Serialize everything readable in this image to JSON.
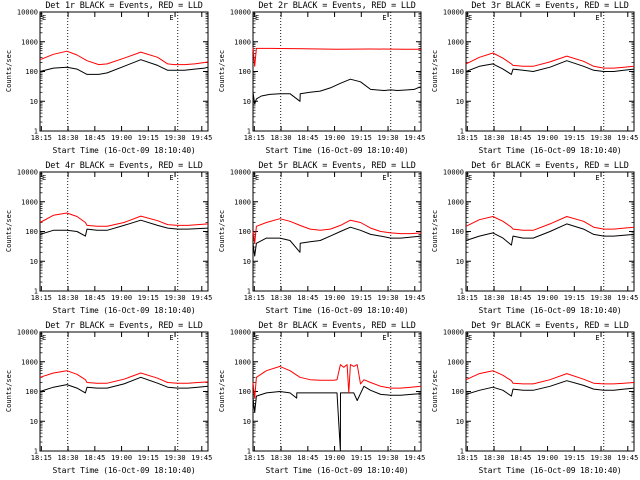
{
  "figure": {
    "start_time_label": "Start Time (16-Oct-09 18:10:40)",
    "y_axis_label": "Counts/sec"
  },
  "colors": {
    "events": "#000000",
    "lld": "#ff0000",
    "axis": "#000000"
  },
  "chart_data": [
    {
      "type": "line",
      "detector": "1r",
      "title": "Det 1r BLACK = Events, RED = LLD",
      "xlabel": "Start Time (16-Oct-09 18:10:40)",
      "ylabel": "Counts/sec",
      "yscale": "log",
      "x_ticks": [
        "18:15",
        "18:30",
        "18:45",
        "19:00",
        "19:15",
        "19:30",
        "19:45"
      ],
      "y_ticks": [
        "1",
        "10",
        "100",
        "1000",
        "10000"
      ],
      "xlim": [
        0,
        100
      ],
      "ylim": [
        1,
        10000
      ],
      "dotted_vlines": [
        16.5,
        82.0
      ],
      "corner_mark": "E",
      "series": [
        {
          "name": "Events",
          "color": "#000000",
          "x": [
            0,
            8,
            16,
            22,
            28,
            35,
            40,
            50,
            60,
            70,
            76,
            80,
            86,
            92,
            98,
            100
          ],
          "y": [
            100,
            130,
            140,
            120,
            80,
            80,
            90,
            150,
            250,
            160,
            110,
            110,
            110,
            120,
            130,
            140
          ]
        },
        {
          "name": "LLD",
          "color": "#ff0000",
          "x": [
            0,
            8,
            16,
            22,
            28,
            35,
            40,
            50,
            60,
            70,
            76,
            80,
            86,
            92,
            98,
            100
          ],
          "y": [
            250,
            380,
            480,
            360,
            230,
            170,
            180,
            280,
            450,
            300,
            180,
            170,
            170,
            180,
            200,
            210
          ]
        }
      ]
    },
    {
      "type": "line",
      "detector": "2r",
      "title": "Det 2r BLACK = Events, RED = LLD",
      "xlabel": "Start Time (16-Oct-09 18:10:40)",
      "ylabel": "Counts/sec",
      "yscale": "log",
      "x_ticks": [
        "18:15",
        "18:30",
        "18:45",
        "19:00",
        "19:15",
        "19:30",
        "19:45"
      ],
      "y_ticks": [
        "1",
        "10",
        "100",
        "1000",
        "10000"
      ],
      "xlim": [
        0,
        100
      ],
      "ylim": [
        1,
        10000
      ],
      "dotted_vlines": [
        16.5,
        82.0
      ],
      "corner_mark": "E",
      "series": [
        {
          "name": "Events",
          "color": "#000000",
          "x": [
            0,
            1,
            2,
            5,
            10,
            16,
            22,
            28,
            28.1,
            34,
            40,
            46,
            52,
            58,
            64,
            70,
            78,
            82,
            86,
            92,
            96,
            98,
            100
          ],
          "y": [
            20,
            8,
            12,
            15,
            17,
            18,
            18,
            10,
            18,
            20,
            22,
            28,
            40,
            55,
            45,
            25,
            23,
            24,
            23,
            24,
            25,
            28,
            30
          ]
        },
        {
          "name": "LLD",
          "color": "#ff0000",
          "x": [
            0,
            1,
            2,
            10,
            30,
            50,
            70,
            90,
            100
          ],
          "y": [
            650,
            150,
            600,
            600,
            580,
            560,
            570,
            560,
            560
          ]
        }
      ]
    },
    {
      "type": "line",
      "detector": "3r",
      "title": "Det 3r BLACK = Events, RED = LLD",
      "xlabel": "Start Time (16-Oct-09 18:10:40)",
      "ylabel": "Counts/sec",
      "yscale": "log",
      "x_ticks": [
        "18:15",
        "18:30",
        "18:45",
        "19:00",
        "19:15",
        "19:30",
        "19:45"
      ],
      "y_ticks": [
        "1",
        "10",
        "100",
        "1000",
        "10000"
      ],
      "xlim": [
        0,
        100
      ],
      "ylim": [
        1,
        10000
      ],
      "dotted_vlines": [
        16.5,
        82.0
      ],
      "corner_mark": "E",
      "series": [
        {
          "name": "Events",
          "color": "#000000",
          "x": [
            0,
            8,
            16,
            22,
            27,
            28,
            34,
            40,
            50,
            60,
            70,
            76,
            82,
            88,
            94,
            100
          ],
          "y": [
            100,
            150,
            180,
            120,
            80,
            120,
            110,
            100,
            140,
            230,
            150,
            110,
            100,
            100,
            110,
            120
          ]
        },
        {
          "name": "LLD",
          "color": "#ff0000",
          "x": [
            0,
            8,
            16,
            22,
            27,
            28,
            34,
            40,
            50,
            60,
            70,
            76,
            82,
            88,
            94,
            100
          ],
          "y": [
            180,
            300,
            420,
            280,
            180,
            160,
            150,
            150,
            210,
            330,
            220,
            150,
            130,
            130,
            140,
            150
          ]
        }
      ]
    },
    {
      "type": "line",
      "detector": "4r",
      "title": "Det 4r BLACK = Events, RED = LLD",
      "xlabel": "Start Time (16-Oct-09 18:10:40)",
      "ylabel": "Counts/sec",
      "yscale": "log",
      "x_ticks": [
        "18:15",
        "18:30",
        "18:45",
        "19:00",
        "19:15",
        "19:30",
        "19:45"
      ],
      "y_ticks": [
        "1",
        "10",
        "100",
        "1000",
        "10000"
      ],
      "xlim": [
        0,
        100
      ],
      "ylim": [
        1,
        10000
      ],
      "dotted_vlines": [
        16.5,
        82.0
      ],
      "corner_mark": "E",
      "series": [
        {
          "name": "Events",
          "color": "#000000",
          "x": [
            0,
            8,
            16,
            22,
            27,
            28,
            34,
            40,
            50,
            60,
            70,
            76,
            82,
            88,
            94,
            100
          ],
          "y": [
            80,
            110,
            110,
            100,
            70,
            120,
            110,
            110,
            160,
            240,
            160,
            130,
            120,
            120,
            125,
            130
          ]
        },
        {
          "name": "LLD",
          "color": "#ff0000",
          "x": [
            0,
            8,
            16,
            22,
            27,
            28,
            34,
            40,
            50,
            60,
            70,
            76,
            82,
            88,
            94,
            100
          ],
          "y": [
            200,
            350,
            420,
            320,
            200,
            160,
            150,
            150,
            200,
            330,
            230,
            170,
            160,
            160,
            170,
            180
          ]
        }
      ]
    },
    {
      "type": "line",
      "detector": "5r",
      "title": "Det 5r BLACK = Events, RED = LLD",
      "xlabel": "Start Time (16-Oct-09 18:10:40)",
      "ylabel": "Counts/sec",
      "yscale": "log",
      "x_ticks": [
        "18:15",
        "18:30",
        "18:45",
        "19:00",
        "19:15",
        "19:30",
        "19:45"
      ],
      "y_ticks": [
        "1",
        "10",
        "100",
        "1000",
        "10000"
      ],
      "xlim": [
        0,
        100
      ],
      "ylim": [
        1,
        10000
      ],
      "dotted_vlines": [
        16.5,
        82.0
      ],
      "corner_mark": "E",
      "series": [
        {
          "name": "Events",
          "color": "#000000",
          "x": [
            0,
            1,
            2,
            8,
            16,
            22,
            28,
            28.1,
            34,
            40,
            46,
            52,
            58,
            64,
            70,
            76,
            82,
            88,
            94,
            100
          ],
          "y": [
            40,
            15,
            40,
            60,
            60,
            50,
            20,
            40,
            45,
            50,
            70,
            100,
            140,
            110,
            80,
            70,
            60,
            60,
            65,
            70
          ]
        },
        {
          "name": "LLD",
          "color": "#ff0000",
          "x": [
            0,
            1,
            2,
            8,
            16,
            22,
            28,
            34,
            40,
            46,
            52,
            58,
            64,
            70,
            76,
            82,
            88,
            94,
            100
          ],
          "y": [
            100,
            40,
            150,
            200,
            270,
            220,
            160,
            120,
            110,
            120,
            160,
            240,
            200,
            130,
            100,
            90,
            85,
            85,
            90
          ]
        }
      ]
    },
    {
      "type": "line",
      "detector": "6r",
      "title": "Det 6r BLACK = Events, RED = LLD",
      "xlabel": "Start Time (16-Oct-09 18:10:40)",
      "ylabel": "Counts/sec",
      "yscale": "log",
      "x_ticks": [
        "18:15",
        "18:30",
        "18:45",
        "19:00",
        "19:15",
        "19:30",
        "19:45"
      ],
      "y_ticks": [
        "1",
        "10",
        "100",
        "1000",
        "10000"
      ],
      "xlim": [
        0,
        100
      ],
      "ylim": [
        1,
        10000
      ],
      "dotted_vlines": [
        16.5,
        82.0
      ],
      "corner_mark": "E",
      "series": [
        {
          "name": "Events",
          "color": "#000000",
          "x": [
            0,
            8,
            16,
            22,
            27,
            28,
            34,
            40,
            50,
            60,
            70,
            76,
            82,
            88,
            94,
            100
          ],
          "y": [
            50,
            70,
            90,
            60,
            35,
            70,
            60,
            60,
            100,
            180,
            120,
            80,
            70,
            70,
            75,
            80
          ]
        },
        {
          "name": "LLD",
          "color": "#ff0000",
          "x": [
            0,
            8,
            16,
            22,
            27,
            28,
            34,
            40,
            50,
            60,
            70,
            76,
            82,
            88,
            94,
            100
          ],
          "y": [
            150,
            250,
            320,
            220,
            140,
            120,
            110,
            110,
            180,
            320,
            220,
            140,
            120,
            120,
            130,
            140
          ]
        }
      ]
    },
    {
      "type": "line",
      "detector": "7r",
      "title": "Det 7r BLACK = Events, RED = LLD",
      "xlabel": "Start Time (16-Oct-09 18:10:40)",
      "ylabel": "Counts/sec",
      "yscale": "log",
      "x_ticks": [
        "18:15",
        "18:30",
        "18:45",
        "19:00",
        "19:15",
        "19:30",
        "19:45"
      ],
      "y_ticks": [
        "1",
        "10",
        "100",
        "1000",
        "10000"
      ],
      "xlim": [
        0,
        100
      ],
      "ylim": [
        1,
        10000
      ],
      "dotted_vlines": [
        16.5,
        82.0
      ],
      "corner_mark": "E",
      "series": [
        {
          "name": "Events",
          "color": "#000000",
          "x": [
            0,
            8,
            16,
            22,
            27,
            28,
            34,
            40,
            50,
            60,
            70,
            76,
            82,
            88,
            94,
            100
          ],
          "y": [
            100,
            140,
            170,
            130,
            90,
            140,
            130,
            130,
            180,
            300,
            190,
            140,
            130,
            130,
            140,
            150
          ]
        },
        {
          "name": "LLD",
          "color": "#ff0000",
          "x": [
            0,
            8,
            16,
            22,
            27,
            28,
            34,
            40,
            50,
            60,
            70,
            76,
            82,
            88,
            94,
            100
          ],
          "y": [
            300,
            420,
            500,
            380,
            250,
            200,
            190,
            190,
            260,
            420,
            280,
            200,
            190,
            190,
            200,
            210
          ]
        }
      ]
    },
    {
      "type": "line",
      "detector": "8r",
      "title": "Det 8r BLACK = Events, RED = LLD",
      "xlabel": "Start Time (16-Oct-09 18:10:40)",
      "ylabel": "Counts/sec",
      "yscale": "log",
      "x_ticks": [
        "18:15",
        "18:30",
        "18:45",
        "19:00",
        "19:15",
        "19:30",
        "19:45"
      ],
      "y_ticks": [
        "1",
        "10",
        "100",
        "1000",
        "10000"
      ],
      "xlim": [
        0,
        100
      ],
      "ylim": [
        1,
        10000
      ],
      "dotted_vlines": [
        16.5,
        82.0
      ],
      "corner_mark": "E",
      "series": [
        {
          "name": "Events",
          "color": "#000000",
          "x": [
            0,
            1,
            2,
            8,
            16,
            22,
            26,
            26.1,
            32,
            38,
            44,
            50,
            52,
            52.1,
            56,
            60,
            62,
            66,
            70,
            76,
            82,
            88,
            94,
            100
          ],
          "y": [
            60,
            20,
            70,
            90,
            100,
            90,
            60,
            90,
            90,
            90,
            90,
            90,
            1,
            90,
            90,
            90,
            50,
            150,
            110,
            80,
            75,
            75,
            80,
            85
          ]
        },
        {
          "name": "LLD",
          "color": "#ff0000",
          "x": [
            0,
            1,
            2,
            8,
            16,
            22,
            28,
            34,
            40,
            48,
            50,
            52,
            54,
            56,
            57,
            58,
            60,
            62,
            64,
            66,
            70,
            76,
            82,
            88,
            94,
            100
          ],
          "y": [
            200,
            60,
            300,
            500,
            700,
            500,
            300,
            250,
            240,
            240,
            250,
            800,
            650,
            800,
            90,
            800,
            700,
            800,
            180,
            250,
            200,
            150,
            130,
            130,
            140,
            150
          ]
        }
      ]
    },
    {
      "type": "line",
      "detector": "9r",
      "title": "Det 9r BLACK = Events, RED = LLD",
      "xlabel": "Start Time (16-Oct-09 18:10:40)",
      "ylabel": "Counts/sec",
      "yscale": "log",
      "x_ticks": [
        "18:15",
        "18:30",
        "18:45",
        "19:00",
        "19:15",
        "19:30",
        "19:45"
      ],
      "y_ticks": [
        "1",
        "10",
        "100",
        "1000",
        "10000"
      ],
      "xlim": [
        0,
        100
      ],
      "ylim": [
        1,
        10000
      ],
      "dotted_vlines": [
        16.5,
        82.0
      ],
      "corner_mark": "E",
      "series": [
        {
          "name": "Events",
          "color": "#000000",
          "x": [
            0,
            8,
            16,
            22,
            27,
            28,
            34,
            40,
            50,
            60,
            70,
            76,
            82,
            88,
            94,
            100
          ],
          "y": [
            80,
            110,
            140,
            110,
            70,
            120,
            110,
            110,
            150,
            230,
            160,
            120,
            110,
            110,
            120,
            130
          ]
        },
        {
          "name": "LLD",
          "color": "#ff0000",
          "x": [
            0,
            8,
            16,
            22,
            27,
            28,
            34,
            40,
            50,
            60,
            70,
            76,
            82,
            88,
            94,
            100
          ],
          "y": [
            250,
            400,
            500,
            350,
            230,
            190,
            180,
            180,
            250,
            400,
            260,
            190,
            180,
            180,
            190,
            200
          ]
        }
      ]
    }
  ]
}
